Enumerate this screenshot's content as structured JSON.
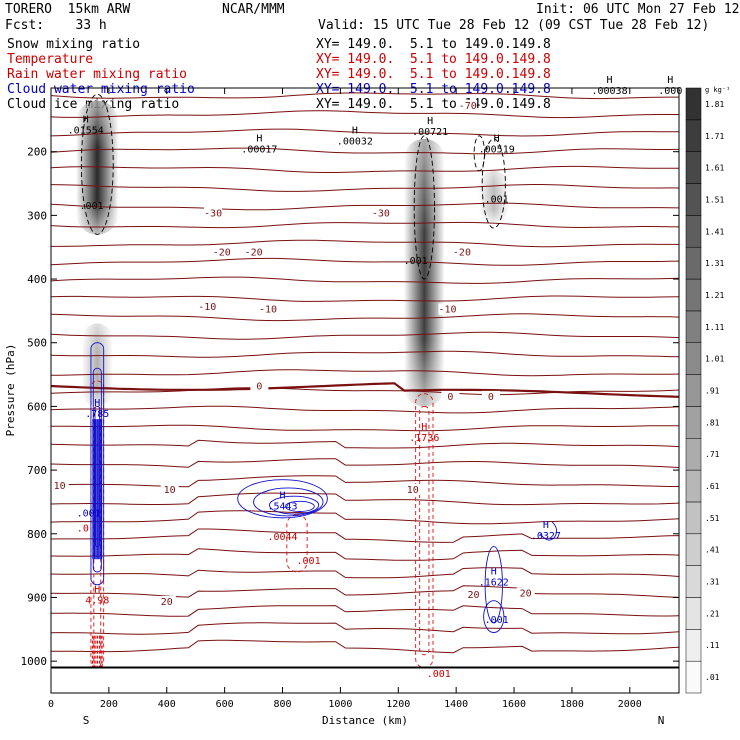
{
  "header": {
    "model": "TORERO  15km ARW",
    "org": "NCAR/MMM",
    "init": "Init: 06 UTC Mon 27 Feb 12",
    "fcst": "Fcst:    33 h",
    "valid": "Valid: 15 UTC Tue 28 Feb 12 (09 CST Tue 28 Feb 12)"
  },
  "fields": [
    {
      "label": "Snow mixing ratio",
      "color": "#000000",
      "xy": "XY= 149.0.  5.1 to 149.0.149.8"
    },
    {
      "label": "Temperature",
      "color": "#cc0000",
      "xy": "XY= 149.0.  5.1 to 149.0.149.8"
    },
    {
      "label": "Rain water mixing ratio",
      "color": "#cc0000",
      "xy": "XY= 149.0.  5.1 to 149.0.149.8"
    },
    {
      "label": "Cloud water mixing ratio",
      "color": "#0000cc",
      "xy": "XY= 149.0.  5.1 to 149.0.149.8"
    },
    {
      "label": "Cloud ice mixing ratio",
      "color": "#000000",
      "xy": "XY= 149.0.  5.1 to 149.0.149.8"
    }
  ],
  "colors": {
    "temperature": "#7a1010",
    "rain": "#dd1111",
    "cloud_water": "#1010cc",
    "cloud_ice": "#000000",
    "axes": "#000000"
  },
  "chart_data": {
    "type": "contour",
    "xlabel": "Distance (km)",
    "ylabel": "Pressure (hPa)",
    "xlim": [
      0,
      2170
    ],
    "ylim": [
      1050,
      100
    ],
    "x_ticks": [
      0,
      200,
      400,
      600,
      800,
      1000,
      1200,
      1400,
      1600,
      1800,
      2000
    ],
    "y_ticks": [
      200,
      300,
      400,
      500,
      600,
      700,
      800,
      900,
      1000
    ],
    "end_labels": {
      "left": "S",
      "right": "N"
    },
    "surface_pressure": 1010,
    "colorbar": {
      "units": "g kg⁻¹",
      "levels": [
        ".01",
        ".11",
        ".21",
        ".31",
        ".41",
        ".51",
        ".61",
        ".71",
        ".81",
        ".91",
        "1.01",
        "1.11",
        "1.21",
        "1.31",
        "1.41",
        "1.51",
        "1.61",
        "1.71",
        "1.81"
      ]
    },
    "snow_plumes": [
      {
        "x": 160,
        "p_top": 120,
        "p_bottom": 330,
        "max": 1.8
      },
      {
        "x": 1290,
        "p_top": 180,
        "p_bottom": 600,
        "max": 1.6
      },
      {
        "x": 1530,
        "p_top": 230,
        "p_bottom": 310,
        "max": 0.3
      },
      {
        "x": 160,
        "p_top": 470,
        "p_bottom": 600,
        "max": 0.4
      }
    ],
    "temperature_labels": [
      {
        "x": 1440,
        "p": 128,
        "text": "-70"
      },
      {
        "x": 560,
        "p": 297,
        "text": "-30"
      },
      {
        "x": 1140,
        "p": 297,
        "text": "-30"
      },
      {
        "x": 590,
        "p": 358,
        "text": "-20"
      },
      {
        "x": 700,
        "p": 358,
        "text": "-20"
      },
      {
        "x": 1420,
        "p": 358,
        "text": "-20"
      },
      {
        "x": 540,
        "p": 444,
        "text": "-10"
      },
      {
        "x": 750,
        "p": 448,
        "text": "-10"
      },
      {
        "x": 1370,
        "p": 448,
        "text": "-10"
      },
      {
        "x": 720,
        "p": 569,
        "text": "0"
      },
      {
        "x": 1380,
        "p": 585,
        "text": "0"
      },
      {
        "x": 1520,
        "p": 585,
        "text": "0"
      },
      {
        "x": 30,
        "p": 725,
        "text": "10"
      },
      {
        "x": 410,
        "p": 731,
        "text": "10"
      },
      {
        "x": 1250,
        "p": 731,
        "text": "10"
      },
      {
        "x": 400,
        "p": 907,
        "text": "20"
      },
      {
        "x": 1460,
        "p": 896,
        "text": "20"
      },
      {
        "x": 1640,
        "p": 894,
        "text": "20"
      }
    ],
    "maxima": [
      {
        "x": 120,
        "p": 170,
        "text": ".01554",
        "color": "#000000"
      },
      {
        "x": 720,
        "p": 200,
        "text": ".00017",
        "color": "#000000"
      },
      {
        "x": 1050,
        "p": 187,
        "text": ".00032",
        "color": "#000000"
      },
      {
        "x": 1310,
        "p": 172,
        "text": ".00721",
        "color": "#000000"
      },
      {
        "x": 1540,
        "p": 200,
        "text": ".00519",
        "color": "#000000"
      },
      {
        "x": 1930,
        "p": 108,
        "text": ".00038",
        "color": "#000000"
      },
      {
        "x": 2140,
        "p": 108,
        "text": ".000",
        "color": "#000000"
      },
      {
        "x": 160,
        "p": 615,
        "text": ".785",
        "color": "#0000cc"
      },
      {
        "x": 1290,
        "p": 653,
        "text": ".1736",
        "color": "#cc0000"
      },
      {
        "x": 800,
        "p": 760,
        "text": ".5443",
        "color": "#0000cc"
      },
      {
        "x": 1710,
        "p": 807,
        "text": ".0327",
        "color": "#0000cc"
      },
      {
        "x": 1530,
        "p": 880,
        "text": ".1622",
        "color": "#0000cc"
      },
      {
        "x": 160,
        "p": 908,
        "text": "4.98",
        "color": "#cc0000"
      }
    ],
    "small_labels": [
      {
        "x": 140,
        "p": 285,
        "text": ".001",
        "color": "#000000"
      },
      {
        "x": 1260,
        "p": 372,
        "text": ".001",
        "color": "#000000"
      },
      {
        "x": 1540,
        "p": 275,
        "text": ".001",
        "color": "#000000"
      },
      {
        "x": 130,
        "p": 768,
        "text": ".001",
        "color": "#0000cc"
      },
      {
        "x": 110,
        "p": 792,
        "text": ".0",
        "color": "#cc0000"
      },
      {
        "x": 800,
        "p": 805,
        "text": ".0044",
        "color": "#cc0000"
      },
      {
        "x": 890,
        "p": 843,
        "text": ".001",
        "color": "#cc0000"
      },
      {
        "x": 1540,
        "p": 935,
        "text": ".001",
        "color": "#0000cc"
      },
      {
        "x": 1340,
        "p": 1020,
        "text": ".001",
        "color": "#cc0000"
      }
    ]
  }
}
